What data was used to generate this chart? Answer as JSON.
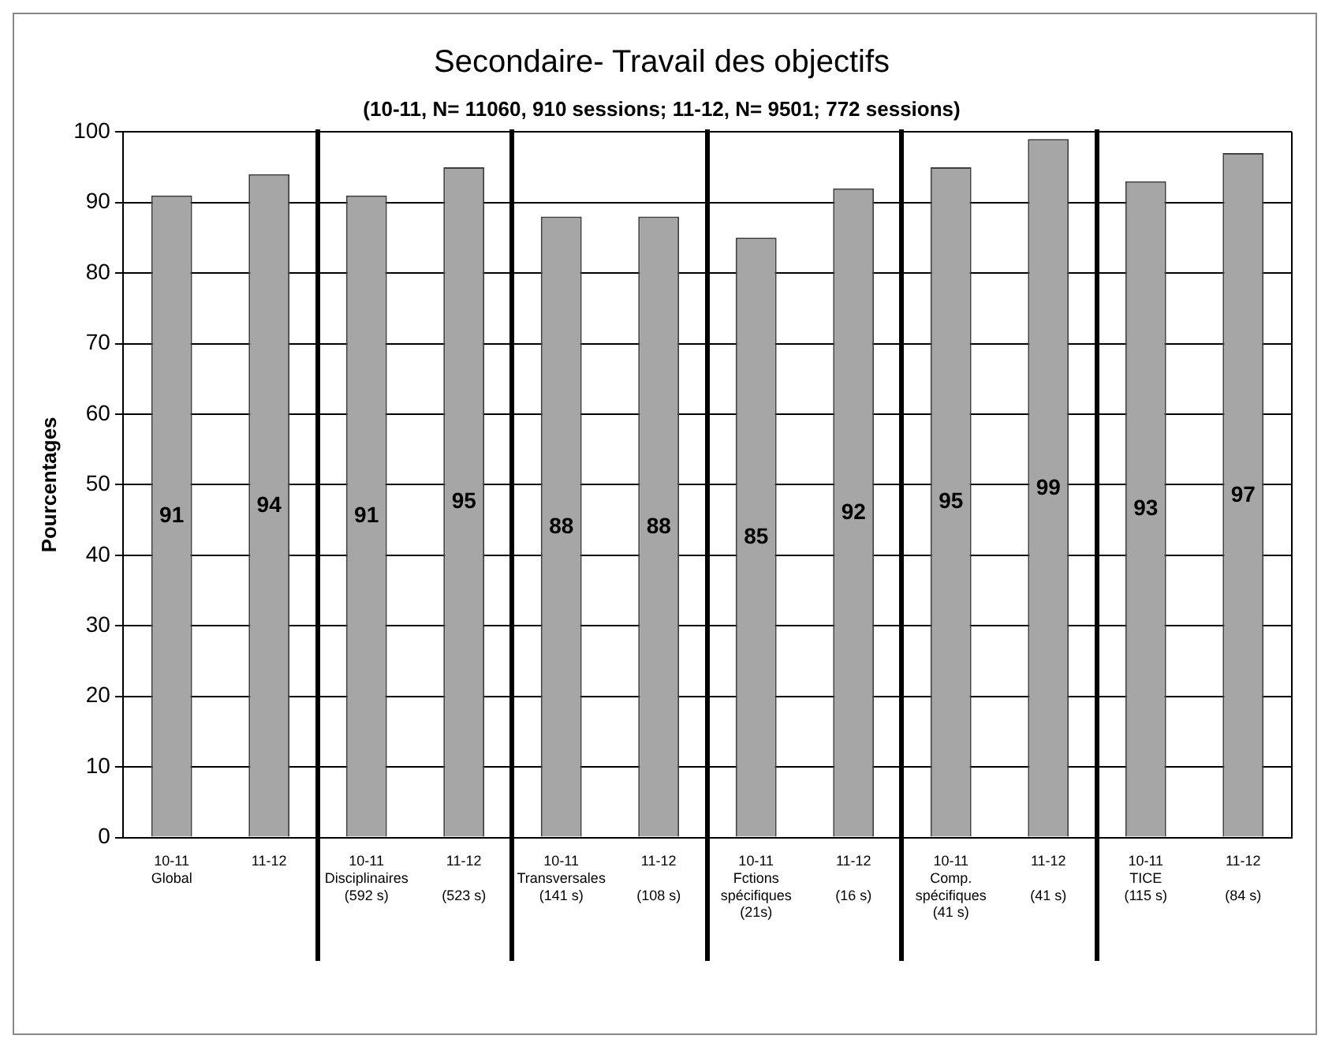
{
  "chart_data": {
    "type": "bar",
    "title": "Secondaire- Travail des objectifs",
    "subtitle": "(10-11, N= 11060, 910 sessions; 11-12, N= 9501; 772 sessions)",
    "ylabel": "Pourcentages",
    "categories": [
      "10-11\nGlobal",
      "11-12",
      "10-11\nDisciplinaires\n(592 s)",
      "11-12\n\n(523 s)",
      "10-11\nTransversales\n(141 s)",
      "11-12\n\n(108 s)",
      "10-11\nFctions\nspécifiques\n(21s)",
      "11-12\n\n(16 s)",
      "10-11\nComp.\nspécifiques\n(41 s)",
      "11-12\n\n(41 s)",
      "10-11\nTICE\n(115 s)",
      "11-12\n\n(84 s)"
    ],
    "values": [
      91,
      94,
      91,
      95,
      88,
      88,
      85,
      92,
      95,
      99,
      93,
      97
    ],
    "color": "#a6a6a6",
    "ylim": [
      0,
      100
    ],
    "yticks": [
      0,
      10,
      20,
      30,
      40,
      50,
      60,
      70,
      80,
      90,
      100
    ],
    "grid": "y",
    "legend": false,
    "data_labels": true
  }
}
